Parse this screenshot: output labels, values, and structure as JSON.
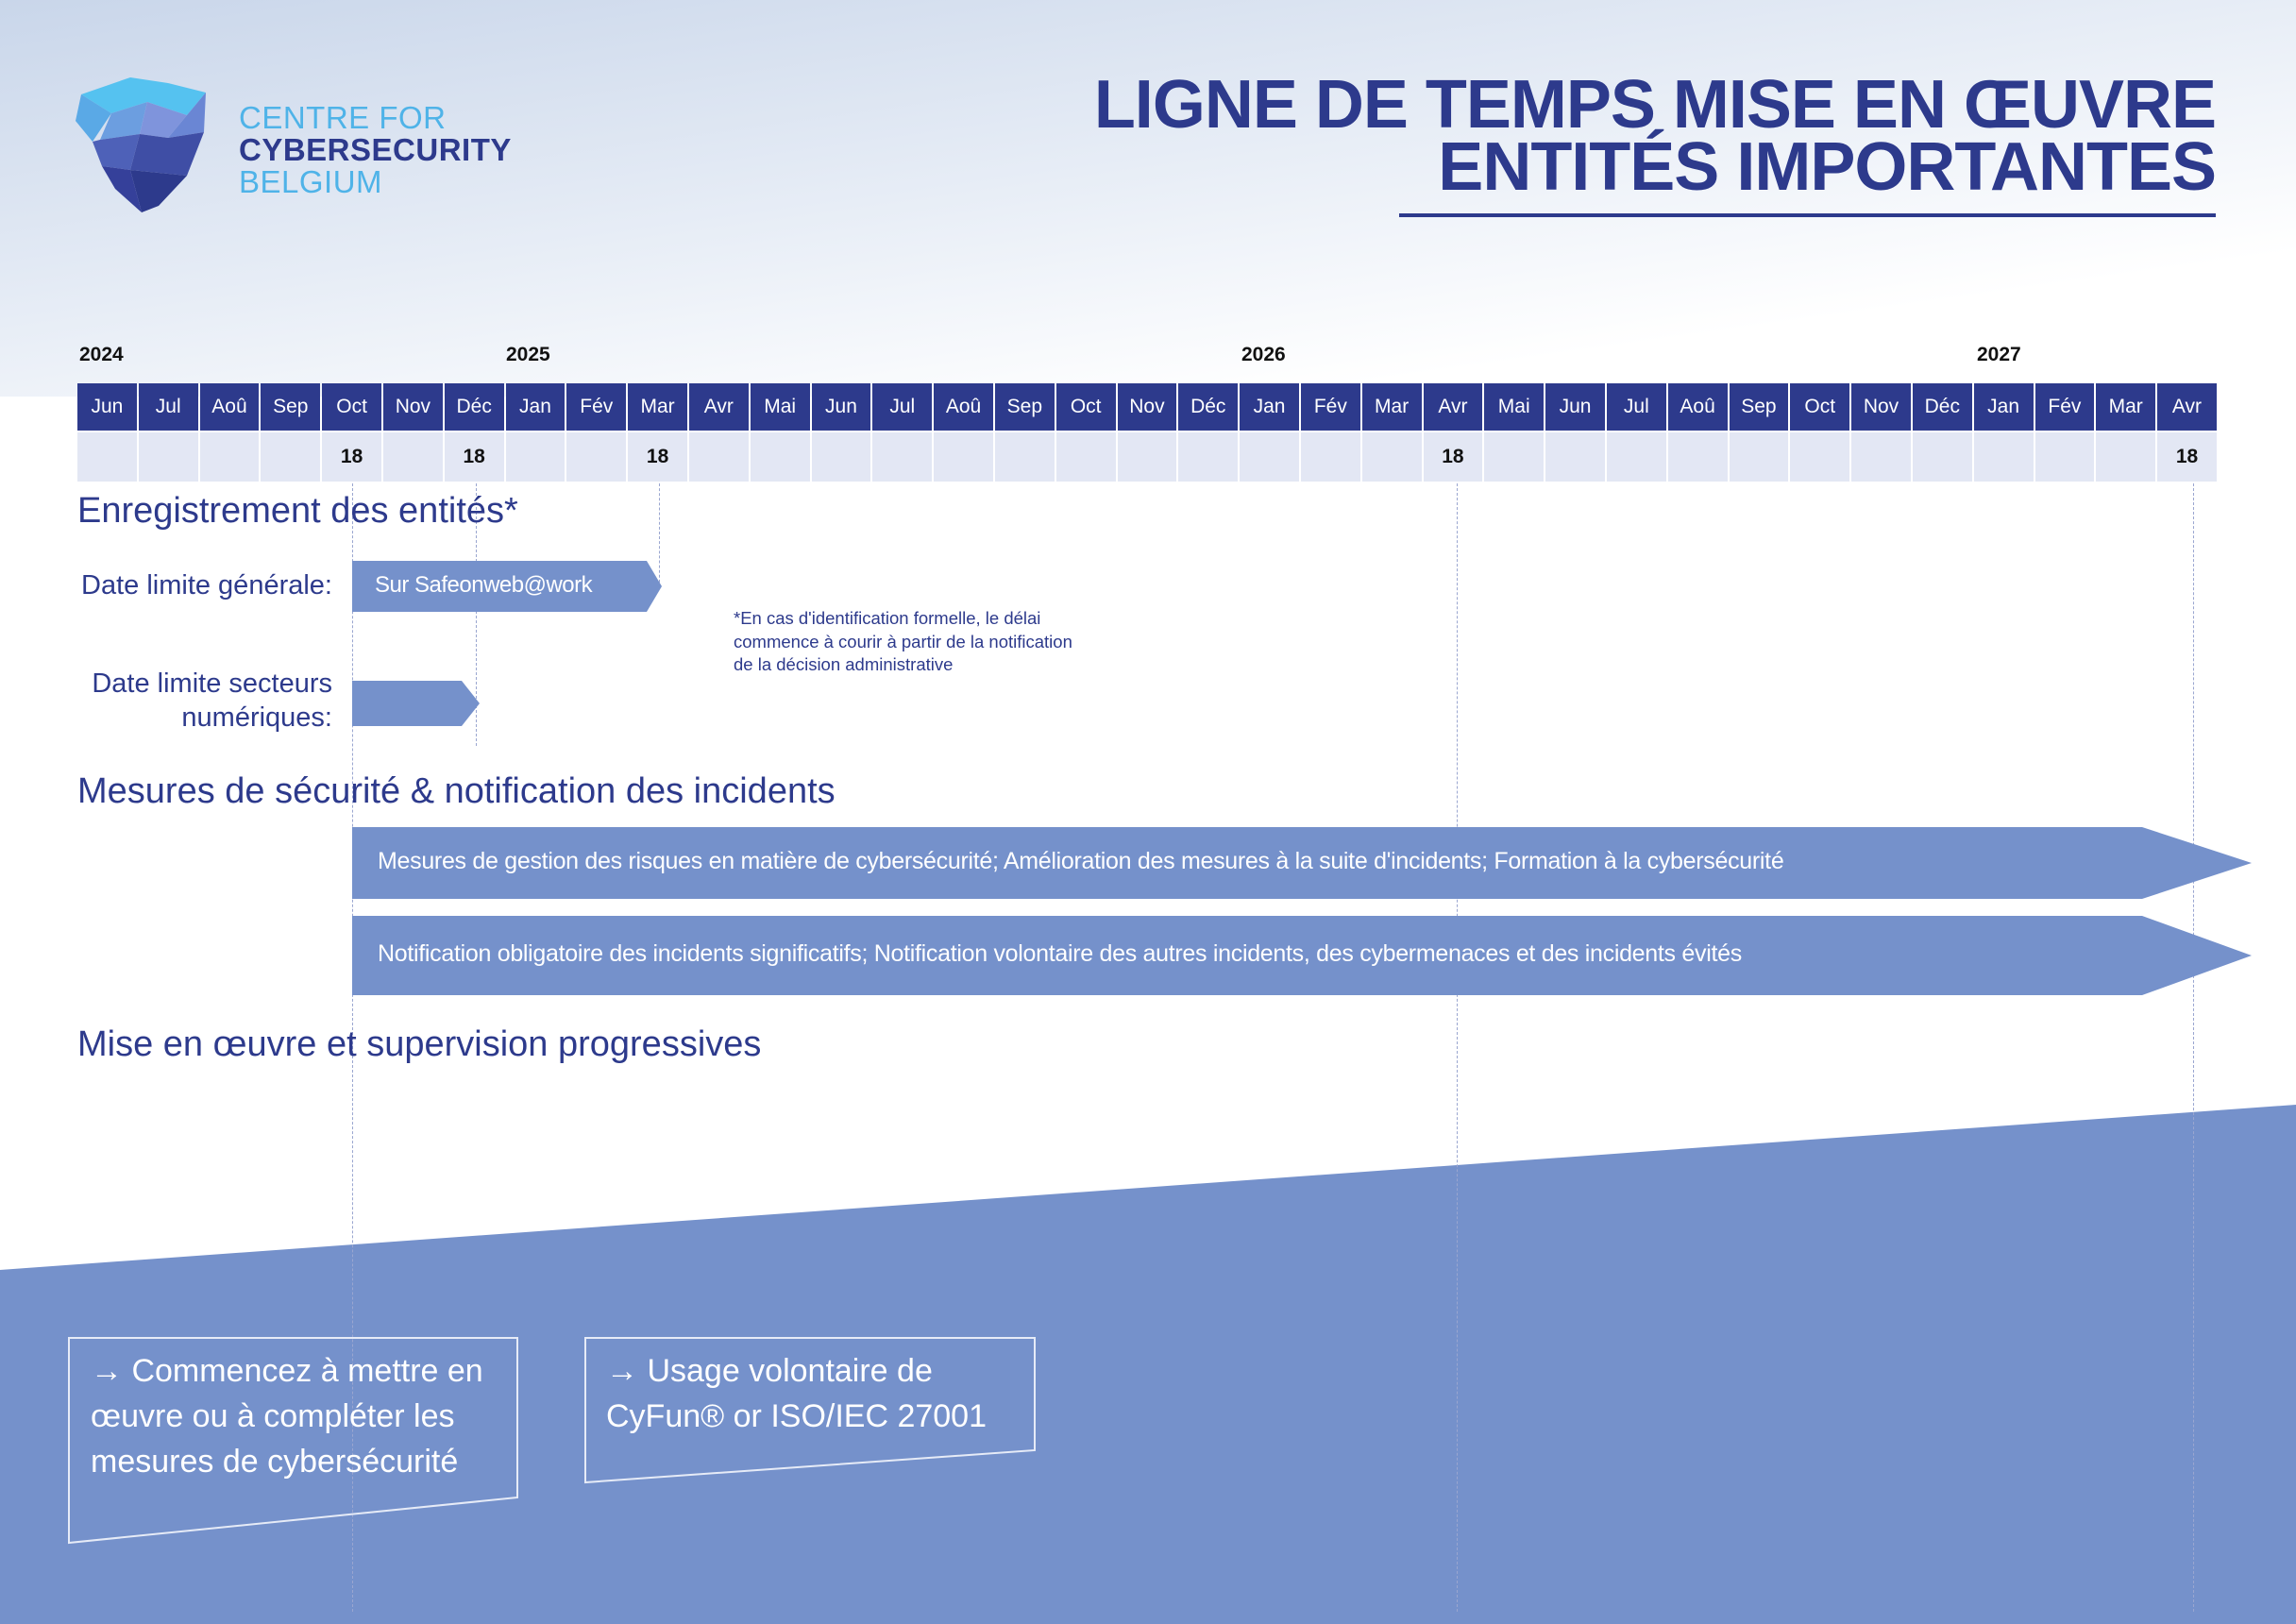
{
  "logo": {
    "line1": "CENTRE FOR",
    "line2": "CYBERSECURITY",
    "line3": "BELGIUM"
  },
  "title": {
    "line1": "LIGNE DE TEMPS MISE EN ŒUVRE",
    "line2": "ENTITÉS IMPORTANTES"
  },
  "years": [
    "2024",
    "2025",
    "2026",
    "2027"
  ],
  "months": [
    "Jun",
    "Jul",
    "Aoû",
    "Sep",
    "Oct",
    "Nov",
    "Déc",
    "Jan",
    "Fév",
    "Mar",
    "Avr",
    "Mai",
    "Jun",
    "Jul",
    "Aoû",
    "Sep",
    "Oct",
    "Nov",
    "Déc",
    "Jan",
    "Fév",
    "Mar",
    "Avr",
    "Mai",
    "Jun",
    "Jul",
    "Aoû",
    "Sep",
    "Oct",
    "Nov",
    "Déc",
    "Jan",
    "Fév",
    "Mar",
    "Avr"
  ],
  "days": [
    "",
    "",
    "",
    "",
    "18",
    "",
    "18",
    "",
    "",
    "18",
    "",
    "",
    "",
    "",
    "",
    "",
    "",
    "",
    "",
    "",
    "",
    "",
    "18",
    "",
    "",
    "",
    "",
    "",
    "",
    "",
    "",
    "",
    "",
    "",
    "18"
  ],
  "sections": {
    "registration": "Enregistrement des entités*",
    "security": "Mesures de sécurité & notification des incidents",
    "supervision": "Mise en œuvre et supervision progressives"
  },
  "registration": {
    "general_label": "Date limite générale:",
    "general_bar": "Sur Safeonweb@work",
    "digital_label_1": "Date limite secteurs",
    "digital_label_2": "numériques:",
    "note": "*En cas d'identification formelle, le délai commence à courir à partir de la notification de la décision administrative"
  },
  "security": {
    "bar1": "Mesures de gestion des risques en matière de cybersécurité; Amélioration des mesures à la suite d'incidents; Formation à la cybersécurité",
    "bar2": "Notification obligatoire des incidents significatifs; Notification volontaire des autres incidents, des cybermenaces et des incidents évités"
  },
  "boxes": {
    "box1": "→ Commencez à mettre en œuvre ou à compléter les mesures de cybersécurité",
    "box2": "→ Usage volontaire de CyFun® or ISO/IEC 27001"
  },
  "colors": {
    "navy": "#2d3a8c",
    "bar": "#7591cb",
    "cell": "#e3e7f4",
    "sky": "#4fb3e8"
  }
}
